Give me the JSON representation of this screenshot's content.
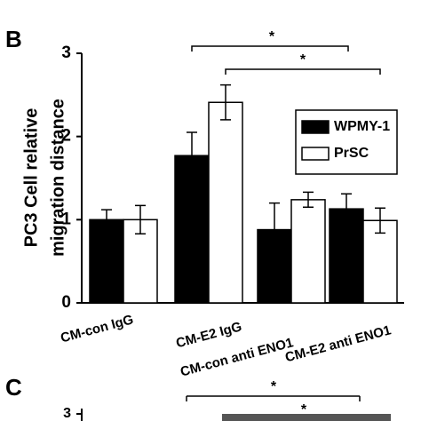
{
  "chart_data": {
    "type": "bar",
    "y_label": [
      "PC3 Cell relative",
      "migration distance"
    ],
    "categories": [
      "CM-con IgG",
      "CM-E2 IgG",
      "CM-con anti ENO1",
      "CM-E2 anti ENO1"
    ],
    "series": [
      {
        "name": "WPMY-1",
        "color": "#000000",
        "values": [
          1.0,
          1.77,
          0.88,
          1.13
        ],
        "errors": [
          0.12,
          0.28,
          0.32,
          0.18
        ]
      },
      {
        "name": "PrSC",
        "color": "#ffffff",
        "values": [
          1.0,
          2.41,
          1.24,
          0.99
        ],
        "errors": [
          0.17,
          0.21,
          0.09,
          0.15
        ]
      }
    ],
    "ylim": [
      0,
      3
    ],
    "yticks": [
      0,
      1,
      2,
      3
    ],
    "legend": "upper right",
    "annotations": [
      "*",
      "*"
    ]
  },
  "panel_labels": [
    "B",
    "C"
  ],
  "panel_c": {
    "annotations": [
      "*",
      "*"
    ],
    "tick_label": "3"
  }
}
